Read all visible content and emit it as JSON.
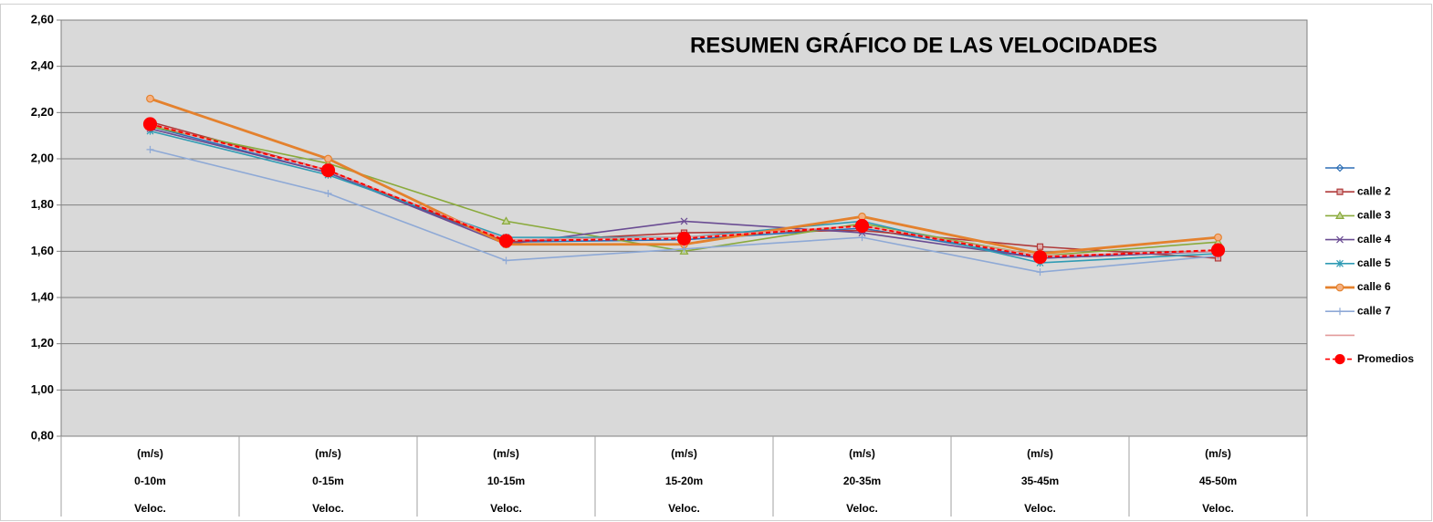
{
  "chart_data": {
    "type": "line",
    "title": "RESUMEN GRÁFICO DE LAS VELOCIDADES",
    "categories": [
      [
        "(m/s)",
        "0-10m",
        "Veloc."
      ],
      [
        "(m/s)",
        "0-15m",
        "Veloc."
      ],
      [
        "(m/s)",
        "10-15m",
        "Veloc."
      ],
      [
        "(m/s)",
        "15-20m",
        "Veloc."
      ],
      [
        "(m/s)",
        "20-35m",
        "Veloc."
      ],
      [
        "(m/s)",
        "35-45m",
        "Veloc."
      ],
      [
        "(m/s)",
        "45-50m",
        "Veloc."
      ]
    ],
    "ylim": [
      0.8,
      2.6
    ],
    "yticks": [
      {
        "value": 0.8,
        "label": "0,80"
      },
      {
        "value": 1.0,
        "label": "1,00"
      },
      {
        "value": 1.2,
        "label": "1,20"
      },
      {
        "value": 1.4,
        "label": "1,40"
      },
      {
        "value": 1.6,
        "label": "1,60"
      },
      {
        "value": 1.8,
        "label": "1,80"
      },
      {
        "value": 2.0,
        "label": "2,00"
      },
      {
        "value": 2.2,
        "label": "2,20"
      },
      {
        "value": 2.4,
        "label": "2,40"
      },
      {
        "value": 2.6,
        "label": "2,60"
      }
    ],
    "grid": true,
    "legend": "right",
    "series": [
      {
        "color": "#2e6fb5",
        "marker": "diamond",
        "values": [
          2.14,
          1.94,
          1.64,
          1.65,
          1.7,
          1.57,
          1.6
        ]
      },
      {
        "name": "calle 2",
        "color": "#b03a3a",
        "marker": "square",
        "values": [
          2.16,
          1.95,
          1.64,
          1.68,
          1.69,
          1.62,
          1.57
        ]
      },
      {
        "name": "calle 3",
        "color": "#8aaa3c",
        "marker": "triangle",
        "values": [
          2.14,
          1.98,
          1.73,
          1.6,
          1.72,
          1.58,
          1.64
        ]
      },
      {
        "name": "calle 4",
        "color": "#6a4c93",
        "marker": "x",
        "values": [
          2.13,
          1.94,
          1.63,
          1.73,
          1.68,
          1.57,
          1.6
        ]
      },
      {
        "name": "calle 5",
        "color": "#2f9bb4",
        "marker": "star",
        "values": [
          2.12,
          1.93,
          1.66,
          1.66,
          1.73,
          1.55,
          1.59
        ]
      },
      {
        "name": "calle 6",
        "color": "#e4812d",
        "marker": "circle",
        "values": [
          2.26,
          2.0,
          1.63,
          1.63,
          1.75,
          1.59,
          1.66
        ]
      },
      {
        "name": "calle 7",
        "color": "#8ea9d6",
        "marker": "plus",
        "values": [
          2.04,
          1.85,
          1.56,
          1.61,
          1.66,
          1.51,
          1.58
        ]
      },
      {
        "color": "#e39a9a",
        "marker": "none",
        "values": [
          2.15,
          1.95,
          1.65,
          1.66,
          1.71,
          1.58,
          1.6
        ]
      },
      {
        "name": "Promedios",
        "color": "#ff0000",
        "marker": "dot",
        "dashed": true,
        "values": [
          2.15,
          1.95,
          1.645,
          1.655,
          1.71,
          1.575,
          1.605
        ]
      }
    ]
  }
}
